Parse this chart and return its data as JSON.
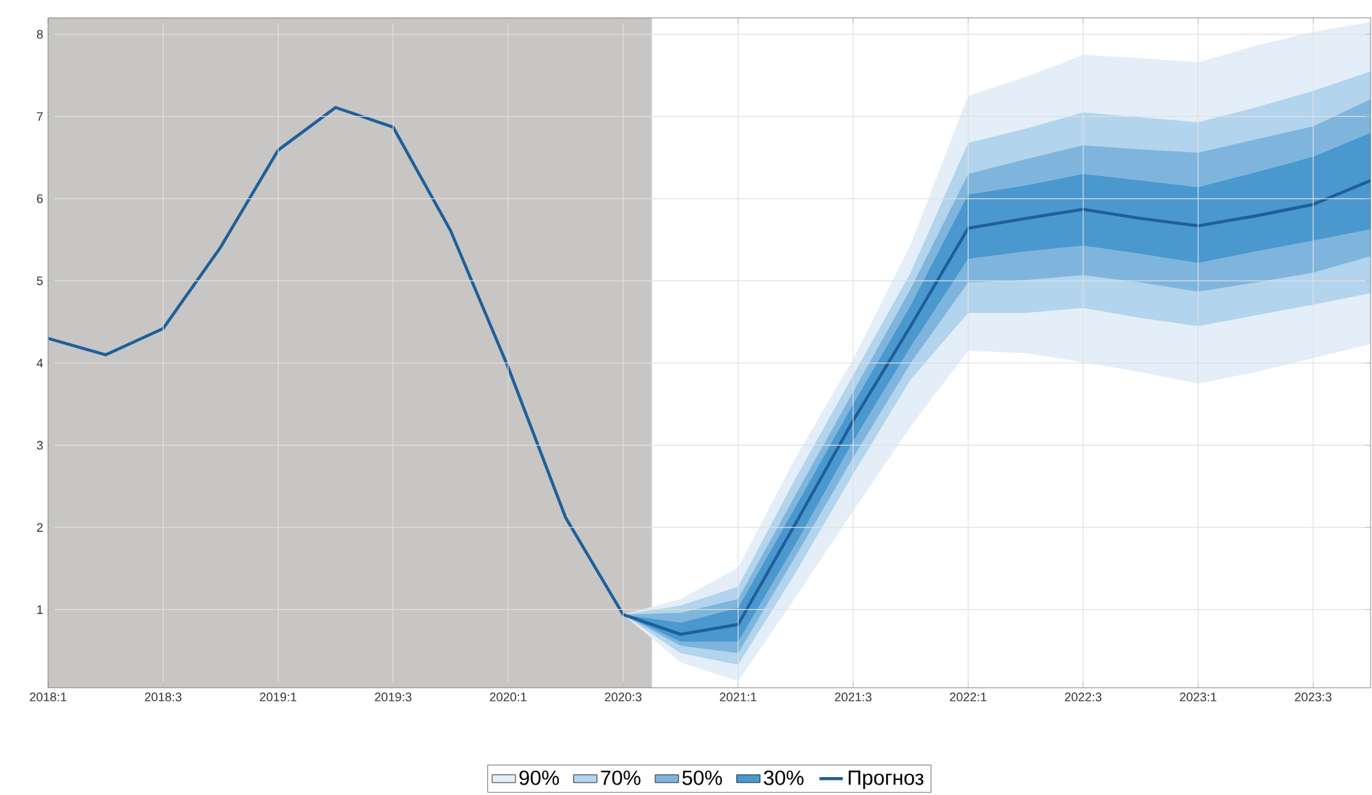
{
  "chart_data": {
    "type": "line",
    "categories": [
      "2018:1",
      null,
      "2018:3",
      null,
      "2019:1",
      null,
      "2019:3",
      null,
      "2020:1",
      null,
      "2020:3",
      null,
      "2021:1",
      null,
      "2021:3",
      null,
      "2022:1",
      null,
      "2022:3",
      null,
      "2023:1",
      null,
      "2023:3",
      null
    ],
    "ylim": [
      0.05,
      8.2
    ],
    "yticks": [
      1,
      2,
      3,
      4,
      5,
      6,
      7,
      8
    ],
    "grid": true,
    "legend": "bottom",
    "bands": [
      {
        "axis": "x",
        "from": "2018:1",
        "to": "2020:3",
        "color": "#c8c6c4"
      }
    ],
    "series": [
      {
        "name": "90%",
        "type": "line",
        "color": "#e3eef8",
        "values": [
          null,
          null,
          null,
          null,
          null,
          null,
          null,
          null,
          null,
          null,
          null,
          null,
          null,
          null,
          null,
          null,
          null,
          null,
          null,
          null,
          null,
          null,
          null,
          null
        ],
        "lower": [
          null,
          null,
          null,
          null,
          null,
          null,
          null,
          null,
          null,
          null,
          0.94,
          0.36,
          0.13,
          1.15,
          2.2,
          3.23,
          4.15,
          4.12,
          4.01,
          3.89,
          3.75,
          3.89,
          4.06,
          4.23
        ],
        "upper": [
          null,
          null,
          null,
          null,
          null,
          null,
          null,
          null,
          null,
          null,
          0.94,
          1.13,
          1.51,
          2.85,
          4.05,
          5.44,
          7.25,
          7.48,
          7.75,
          7.71,
          7.66,
          7.86,
          8.03,
          8.15
        ]
      },
      {
        "name": "70%",
        "type": "line",
        "color": "#b2d4ec",
        "values": [
          null,
          null,
          null,
          null,
          null,
          null,
          null,
          null,
          null,
          null,
          null,
          null,
          null,
          null,
          null,
          null,
          null,
          null,
          null,
          null,
          null,
          null,
          null,
          null
        ],
        "lower": [
          null,
          null,
          null,
          null,
          null,
          null,
          null,
          null,
          null,
          null,
          0.94,
          0.47,
          0.33,
          1.45,
          2.65,
          3.8,
          4.61,
          4.61,
          4.67,
          4.55,
          4.45,
          4.58,
          4.71,
          4.85
        ],
        "upper": [
          null,
          null,
          null,
          null,
          null,
          null,
          null,
          null,
          null,
          null,
          0.94,
          1.05,
          1.28,
          2.6,
          3.85,
          5.1,
          6.68,
          6.85,
          7.05,
          6.99,
          6.93,
          7.11,
          7.31,
          7.55
        ]
      },
      {
        "name": "50%",
        "type": "line",
        "color": "#7fb5dd",
        "values": [
          null,
          null,
          null,
          null,
          null,
          null,
          null,
          null,
          null,
          null,
          null,
          null,
          null,
          null,
          null,
          null,
          null,
          null,
          null,
          null,
          null,
          null,
          null,
          null
        ],
        "lower": [
          null,
          null,
          null,
          null,
          null,
          null,
          null,
          null,
          null,
          null,
          0.94,
          0.56,
          0.47,
          1.65,
          2.85,
          4.0,
          4.98,
          5.01,
          5.07,
          4.98,
          4.87,
          4.98,
          5.1,
          5.3
        ],
        "upper": [
          null,
          null,
          null,
          null,
          null,
          null,
          null,
          null,
          null,
          null,
          0.94,
          0.96,
          1.13,
          2.4,
          3.65,
          4.9,
          6.3,
          6.48,
          6.65,
          6.6,
          6.56,
          6.72,
          6.88,
          7.21
        ]
      },
      {
        "name": "30%",
        "type": "line",
        "color": "#4a98ce",
        "values": [
          null,
          null,
          null,
          null,
          null,
          null,
          null,
          null,
          null,
          null,
          null,
          null,
          null,
          null,
          null,
          null,
          null,
          null,
          null,
          null,
          null,
          null,
          null,
          null
        ],
        "lower": [
          null,
          null,
          null,
          null,
          null,
          null,
          null,
          null,
          null,
          null,
          0.94,
          0.61,
          0.61,
          1.8,
          3.05,
          4.2,
          5.27,
          5.36,
          5.43,
          5.33,
          5.22,
          5.36,
          5.49,
          5.63
        ],
        "upper": [
          null,
          null,
          null,
          null,
          null,
          null,
          null,
          null,
          null,
          null,
          0.94,
          0.84,
          1.02,
          2.25,
          3.5,
          4.7,
          6.05,
          6.16,
          6.3,
          6.22,
          6.14,
          6.32,
          6.51,
          6.8
        ]
      },
      {
        "name": "Прогноз",
        "color": "#1f5f99",
        "values": [
          4.3,
          4.1,
          4.42,
          5.41,
          6.59,
          7.11,
          6.87,
          5.61,
          3.95,
          2.12,
          0.94,
          0.7,
          0.82,
          2.05,
          3.3,
          4.45,
          5.64,
          5.76,
          5.87,
          5.76,
          5.67,
          5.79,
          5.93,
          6.22
        ]
      }
    ]
  }
}
